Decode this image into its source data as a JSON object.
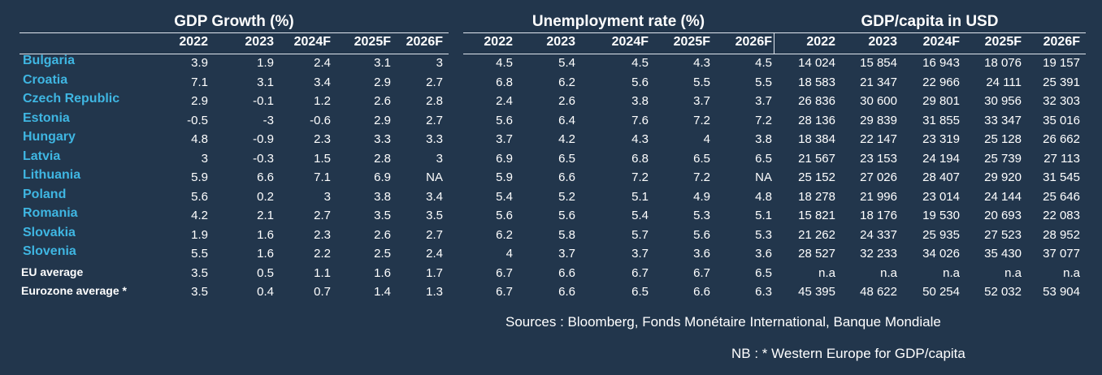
{
  "chart_data": {
    "type": "table",
    "groups": [
      {
        "title": "GDP Growth (%)",
        "key": "gdp_growth"
      },
      {
        "title": "Unemployment rate (%)",
        "key": "unemployment"
      },
      {
        "title": "GDP/capita in USD",
        "key": "gdp_capita"
      }
    ],
    "years": [
      "2022",
      "2023",
      "2024F",
      "2025F",
      "2026F"
    ],
    "rows": [
      {
        "country": "Bulgaria",
        "highlight": true,
        "gdp_growth": [
          "3.9",
          "1.9",
          "2.4",
          "3.1",
          "3"
        ],
        "unemployment": [
          "4.5",
          "5.4",
          "4.5",
          "4.3",
          "4.5"
        ],
        "gdp_capita": [
          "14 024",
          "15 854",
          "16 943",
          "18 076",
          "19 157"
        ]
      },
      {
        "country": "Croatia",
        "highlight": true,
        "gdp_growth": [
          "7.1",
          "3.1",
          "3.4",
          "2.9",
          "2.7"
        ],
        "unemployment": [
          "6.8",
          "6.2",
          "5.6",
          "5.5",
          "5.5"
        ],
        "gdp_capita": [
          "18 583",
          "21 347",
          "22 966",
          "24 111",
          "25 391"
        ]
      },
      {
        "country": "Czech Republic",
        "highlight": true,
        "gdp_growth": [
          "2.9",
          "-0.1",
          "1.2",
          "2.6",
          "2.8"
        ],
        "unemployment": [
          "2.4",
          "2.6",
          "3.8",
          "3.7",
          "3.7"
        ],
        "gdp_capita": [
          "26 836",
          "30 600",
          "29 801",
          "30 956",
          "32 303"
        ]
      },
      {
        "country": "Estonia",
        "highlight": true,
        "gdp_growth": [
          "-0.5",
          "-3",
          "-0.6",
          "2.9",
          "2.7"
        ],
        "unemployment": [
          "5.6",
          "6.4",
          "7.6",
          "7.2",
          "7.2"
        ],
        "gdp_capita": [
          "28 136",
          "29 839",
          "31 855",
          "33 347",
          "35 016"
        ]
      },
      {
        "country": "Hungary",
        "highlight": true,
        "gdp_growth": [
          "4.8",
          "-0.9",
          "2.3",
          "3.3",
          "3.3"
        ],
        "unemployment": [
          "3.7",
          "4.2",
          "4.3",
          "4",
          "3.8"
        ],
        "gdp_capita": [
          "18 384",
          "22 147",
          "23 319",
          "25 128",
          "26 662"
        ]
      },
      {
        "country": "Latvia",
        "highlight": true,
        "gdp_growth": [
          "3",
          "-0.3",
          "1.5",
          "2.8",
          "3"
        ],
        "unemployment": [
          "6.9",
          "6.5",
          "6.8",
          "6.5",
          "6.5"
        ],
        "gdp_capita": [
          "21 567",
          "23 153",
          "24 194",
          "25 739",
          "27 113"
        ]
      },
      {
        "country": "Lithuania",
        "highlight": true,
        "gdp_growth": [
          "5.9",
          "6.6",
          "7.1",
          "6.9",
          "NA"
        ],
        "unemployment": [
          "5.9",
          "6.6",
          "7.2",
          "7.2",
          "NA"
        ],
        "gdp_capita": [
          "25 152",
          "27 026",
          "28 407",
          "29 920",
          "31 545"
        ]
      },
      {
        "country": "Poland",
        "highlight": true,
        "gdp_growth": [
          "5.6",
          "0.2",
          "3",
          "3.8",
          "3.4"
        ],
        "unemployment": [
          "5.4",
          "5.2",
          "5.1",
          "4.9",
          "4.8"
        ],
        "gdp_capita": [
          "18 278",
          "21 996",
          "23 014",
          "24 144",
          "25 646"
        ]
      },
      {
        "country": "Romania",
        "highlight": true,
        "gdp_growth": [
          "4.2",
          "2.1",
          "2.7",
          "3.5",
          "3.5"
        ],
        "unemployment": [
          "5.6",
          "5.6",
          "5.4",
          "5.3",
          "5.1"
        ],
        "gdp_capita": [
          "15 821",
          "18 176",
          "19 530",
          "20 693",
          "22 083"
        ]
      },
      {
        "country": "Slovakia",
        "highlight": true,
        "gdp_growth": [
          "1.9",
          "1.6",
          "2.3",
          "2.6",
          "2.7"
        ],
        "unemployment": [
          "6.2",
          "5.8",
          "5.7",
          "5.6",
          "5.3"
        ],
        "gdp_capita": [
          "21 262",
          "24 337",
          "25 935",
          "27 523",
          "28 952"
        ]
      },
      {
        "country": "Slovenia",
        "highlight": true,
        "gdp_growth": [
          "5.5",
          "1.6",
          "2.2",
          "2.5",
          "2.4"
        ],
        "unemployment": [
          "4",
          "3.7",
          "3.7",
          "3.6",
          "3.6"
        ],
        "gdp_capita": [
          "28 527",
          "32 233",
          "34 026",
          "35 430",
          "37 077"
        ]
      },
      {
        "country": "EU average",
        "highlight": false,
        "gdp_growth": [
          "3.5",
          "0.5",
          "1.1",
          "1.6",
          "1.7"
        ],
        "unemployment": [
          "6.7",
          "6.6",
          "6.7",
          "6.7",
          "6.5"
        ],
        "gdp_capita": [
          "n.a",
          "n.a",
          "n.a",
          "n.a",
          "n.a"
        ]
      },
      {
        "country": "Eurozone average *",
        "highlight": false,
        "gdp_growth": [
          "3.5",
          "0.4",
          "0.7",
          "1.4",
          "1.3"
        ],
        "unemployment": [
          "6.7",
          "6.6",
          "6.5",
          "6.6",
          "6.3"
        ],
        "gdp_capita": [
          "45 395",
          "48 622",
          "50 254",
          "52 032",
          "53 904"
        ]
      }
    ]
  },
  "notes": {
    "sources": "Sources : Bloomberg, Fonds Monétaire International, Banque Mondiale",
    "nb": "NB :  * Western Europe for GDP/capita"
  },
  "colors": {
    "background": "#22364c",
    "country_label": "#3fb6e2",
    "text": "#ffffff"
  }
}
